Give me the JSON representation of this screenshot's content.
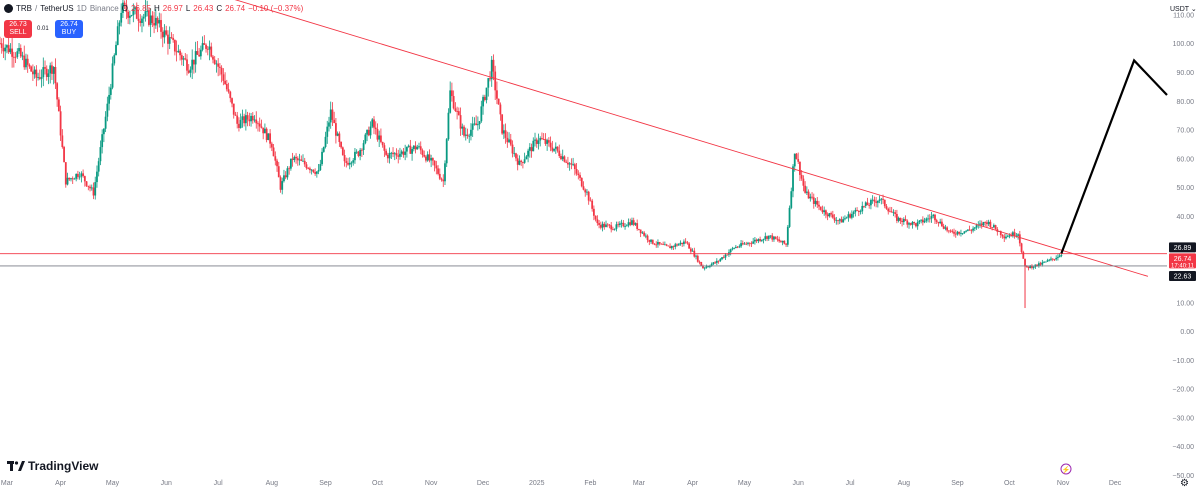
{
  "header": {
    "symbol": "TRB",
    "separator": "/",
    "pair": "TetherUS",
    "interval": "1D",
    "exchange": "Binance",
    "open_label": "O",
    "open": "26.85",
    "high_label": "H",
    "high": "26.97",
    "low_label": "L",
    "low": "26.43",
    "close_label": "C",
    "close": "26.74",
    "change": "−0.10 (−0.37%)"
  },
  "trade": {
    "sell_price": "26.73",
    "sell_label": "SELL",
    "spread": "0.01",
    "buy_price": "26.74",
    "buy_label": "BUY"
  },
  "currency": "USDT",
  "logo_text": "TradingView",
  "colors": {
    "up": "#089981",
    "down": "#f23645",
    "trendline": "#f23645",
    "hline_resistance": "#f23645",
    "hline_support": "#787b86",
    "projection": "#000000",
    "axis_text": "#787b86",
    "badge_dark": "#131722"
  },
  "chart_data": {
    "type": "candlestick",
    "title": "TRB / TetherUS · 1D · Binance",
    "ylim": [
      -50,
      115
    ],
    "yticks": [
      110,
      100,
      90,
      80,
      70,
      60,
      50,
      40,
      30,
      20,
      10,
      0,
      -10,
      -20,
      -30,
      -40,
      -50
    ],
    "ytick_labels": [
      "110.00",
      "100.00",
      "90.00",
      "80.00",
      "70.00",
      "60.00",
      "50.00",
      "40.00",
      "30.00",
      "20.00",
      "10.00",
      "0.00",
      "−10.00",
      "−20.00",
      "−30.00",
      "−40.00",
      "−50.00"
    ],
    "x_start": "2024-02-26",
    "x_end": "2025-12-31",
    "xtick_labels": [
      {
        "date": "2024-03-01",
        "label": "Mar"
      },
      {
        "date": "2024-04-01",
        "label": "Apr"
      },
      {
        "date": "2024-05-01",
        "label": "May"
      },
      {
        "date": "2024-06-01",
        "label": "Jun"
      },
      {
        "date": "2024-07-01",
        "label": "Jul"
      },
      {
        "date": "2024-08-01",
        "label": "Aug"
      },
      {
        "date": "2024-09-01",
        "label": "Sep"
      },
      {
        "date": "2024-10-01",
        "label": "Oct"
      },
      {
        "date": "2024-11-01",
        "label": "Nov"
      },
      {
        "date": "2024-12-01",
        "label": "Dec"
      },
      {
        "date": "2025-01-01",
        "label": "2025"
      },
      {
        "date": "2025-02-01",
        "label": "Feb"
      },
      {
        "date": "2025-03-01",
        "label": "Mar"
      },
      {
        "date": "2025-04-01",
        "label": "Apr"
      },
      {
        "date": "2025-05-01",
        "label": "May"
      },
      {
        "date": "2025-06-01",
        "label": "Jun"
      },
      {
        "date": "2025-07-01",
        "label": "Jul"
      },
      {
        "date": "2025-08-01",
        "label": "Aug"
      },
      {
        "date": "2025-09-01",
        "label": "Sep"
      },
      {
        "date": "2025-10-01",
        "label": "Oct"
      },
      {
        "date": "2025-11-01",
        "label": "Nov"
      },
      {
        "date": "2025-12-01",
        "label": "Dec"
      }
    ],
    "price_path": [
      {
        "date": "2024-02-26",
        "price": 100
      },
      {
        "date": "2024-03-08",
        "price": 96
      },
      {
        "date": "2024-03-18",
        "price": 88
      },
      {
        "date": "2024-03-28",
        "price": 92
      },
      {
        "date": "2024-04-04",
        "price": 52
      },
      {
        "date": "2024-04-12",
        "price": 55
      },
      {
        "date": "2024-04-20",
        "price": 48
      },
      {
        "date": "2024-04-28",
        "price": 78
      },
      {
        "date": "2024-05-06",
        "price": 112
      },
      {
        "date": "2024-05-15",
        "price": 110
      },
      {
        "date": "2024-05-25",
        "price": 108
      },
      {
        "date": "2024-06-04",
        "price": 100
      },
      {
        "date": "2024-06-14",
        "price": 92
      },
      {
        "date": "2024-06-25",
        "price": 100
      },
      {
        "date": "2024-07-04",
        "price": 88
      },
      {
        "date": "2024-07-12",
        "price": 72
      },
      {
        "date": "2024-07-22",
        "price": 75
      },
      {
        "date": "2024-08-01",
        "price": 65
      },
      {
        "date": "2024-08-06",
        "price": 50
      },
      {
        "date": "2024-08-13",
        "price": 60
      },
      {
        "date": "2024-08-20",
        "price": 58
      },
      {
        "date": "2024-08-28",
        "price": 55
      },
      {
        "date": "2024-09-04",
        "price": 76
      },
      {
        "date": "2024-09-12",
        "price": 58
      },
      {
        "date": "2024-09-20",
        "price": 62
      },
      {
        "date": "2024-09-28",
        "price": 72
      },
      {
        "date": "2024-10-06",
        "price": 61
      },
      {
        "date": "2024-10-15",
        "price": 62
      },
      {
        "date": "2024-10-24",
        "price": 64
      },
      {
        "date": "2024-11-02",
        "price": 58
      },
      {
        "date": "2024-11-08",
        "price": 52
      },
      {
        "date": "2024-11-12",
        "price": 83
      },
      {
        "date": "2024-11-20",
        "price": 68
      },
      {
        "date": "2024-11-28",
        "price": 72
      },
      {
        "date": "2024-12-06",
        "price": 92
      },
      {
        "date": "2024-12-12",
        "price": 70
      },
      {
        "date": "2024-12-22",
        "price": 58
      },
      {
        "date": "2025-01-02",
        "price": 67
      },
      {
        "date": "2025-01-12",
        "price": 63
      },
      {
        "date": "2025-01-22",
        "price": 57
      },
      {
        "date": "2025-01-30",
        "price": 48
      },
      {
        "date": "2025-02-05",
        "price": 37
      },
      {
        "date": "2025-02-15",
        "price": 36
      },
      {
        "date": "2025-02-25",
        "price": 38
      },
      {
        "date": "2025-03-08",
        "price": 31
      },
      {
        "date": "2025-03-18",
        "price": 29
      },
      {
        "date": "2025-03-28",
        "price": 31
      },
      {
        "date": "2025-04-07",
        "price": 22
      },
      {
        "date": "2025-04-15",
        "price": 24
      },
      {
        "date": "2025-04-25",
        "price": 29
      },
      {
        "date": "2025-05-05",
        "price": 31
      },
      {
        "date": "2025-05-15",
        "price": 33
      },
      {
        "date": "2025-05-25",
        "price": 30
      },
      {
        "date": "2025-05-30",
        "price": 63
      },
      {
        "date": "2025-06-05",
        "price": 48
      },
      {
        "date": "2025-06-15",
        "price": 42
      },
      {
        "date": "2025-06-25",
        "price": 38
      },
      {
        "date": "2025-07-08",
        "price": 43
      },
      {
        "date": "2025-07-18",
        "price": 46
      },
      {
        "date": "2025-07-28",
        "price": 39
      },
      {
        "date": "2025-08-08",
        "price": 37
      },
      {
        "date": "2025-08-18",
        "price": 40
      },
      {
        "date": "2025-08-28",
        "price": 34
      },
      {
        "date": "2025-09-08",
        "price": 35
      },
      {
        "date": "2025-09-18",
        "price": 38
      },
      {
        "date": "2025-09-28",
        "price": 33
      },
      {
        "date": "2025-10-06",
        "price": 34
      },
      {
        "date": "2025-10-10",
        "price": 22
      },
      {
        "date": "2025-10-18",
        "price": 23
      },
      {
        "date": "2025-10-26",
        "price": 25
      },
      {
        "date": "2025-10-31",
        "price": 26.74
      }
    ],
    "annotations": {
      "trendline": [
        {
          "date": "2024-06-14",
          "price": 120
        },
        {
          "date": "2025-12-20",
          "price": 19
        }
      ],
      "resistance_line": {
        "price": 26.89,
        "label": "26.89"
      },
      "support_line": {
        "price": 22.63,
        "label": "22.63"
      },
      "current_price": {
        "price": 26.74,
        "label": "26.74",
        "countdown": "17:40:11"
      },
      "projection": [
        {
          "date": "2025-10-31",
          "price": 27
        },
        {
          "date": "2025-12-12",
          "price": 94
        },
        {
          "date": "2025-12-31",
          "price": 82
        }
      ],
      "low_spike": {
        "date": "2025-10-10",
        "price": 8
      }
    }
  }
}
